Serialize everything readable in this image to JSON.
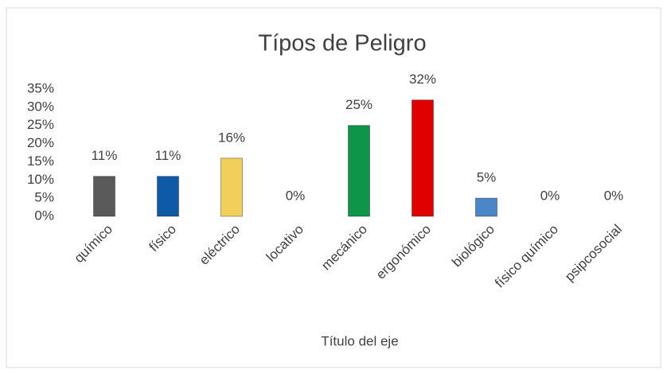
{
  "chart_data": {
    "type": "bar",
    "title": "Típos de Peligro",
    "x_label": "Título del eje",
    "categories": [
      "químico",
      "físico",
      "eléctrico",
      "locativo",
      "mecánico",
      "ergonómico",
      "biológico",
      "físico químico",
      "psipcosocial"
    ],
    "values": [
      11,
      11,
      16,
      0,
      25,
      32,
      5,
      0,
      0
    ],
    "value_labels": [
      "11%",
      "11%",
      "16%",
      "0%",
      "25%",
      "32%",
      "5%",
      "0%",
      "0%"
    ],
    "colors": [
      "#5a5a5a",
      "#0e5aa7",
      "#f2cf5b",
      null,
      "#10944a",
      "#e00000",
      "#4a86c8",
      null,
      null
    ],
    "ylim": [
      0,
      35
    ],
    "yticks": [
      {
        "value": 0,
        "label": "0%"
      },
      {
        "value": 5,
        "label": "5%"
      },
      {
        "value": 10,
        "label": "10%"
      },
      {
        "value": 15,
        "label": "15%"
      },
      {
        "value": 20,
        "label": "20%"
      },
      {
        "value": 25,
        "label": "25%"
      },
      {
        "value": 30,
        "label": "30%"
      },
      {
        "value": 35,
        "label": "35%"
      }
    ],
    "grid": false
  }
}
